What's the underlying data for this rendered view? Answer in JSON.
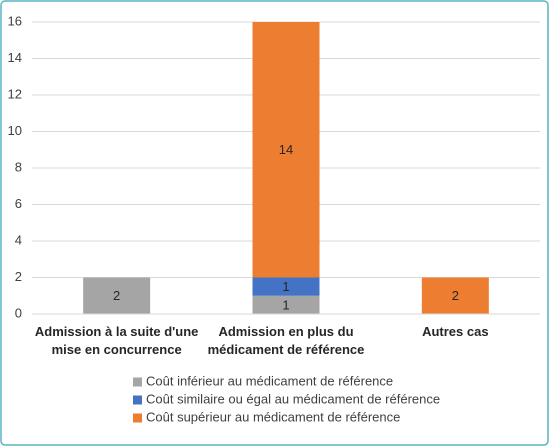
{
  "chart_data": {
    "type": "stacked_bar",
    "categories": [
      "Admission à la suite d'une mise en concurrence",
      "Admission en plus du médicament de référence",
      "Autres cas"
    ],
    "series": [
      {
        "name": "Coût inférieur au médicament de référence",
        "color": "#a5a5a5",
        "values": [
          2,
          1,
          0
        ]
      },
      {
        "name": "Coût similaire ou égal au médicament de référence",
        "color": "#4472c4",
        "values": [
          0,
          1,
          0
        ]
      },
      {
        "name": "Coût supérieur au médicament de référence",
        "color": "#ed7d31",
        "values": [
          0,
          14,
          2
        ]
      }
    ],
    "ylim": [
      0,
      16
    ],
    "yticks": [
      0,
      2,
      4,
      6,
      8,
      10,
      12,
      14,
      16
    ],
    "grid": true
  }
}
